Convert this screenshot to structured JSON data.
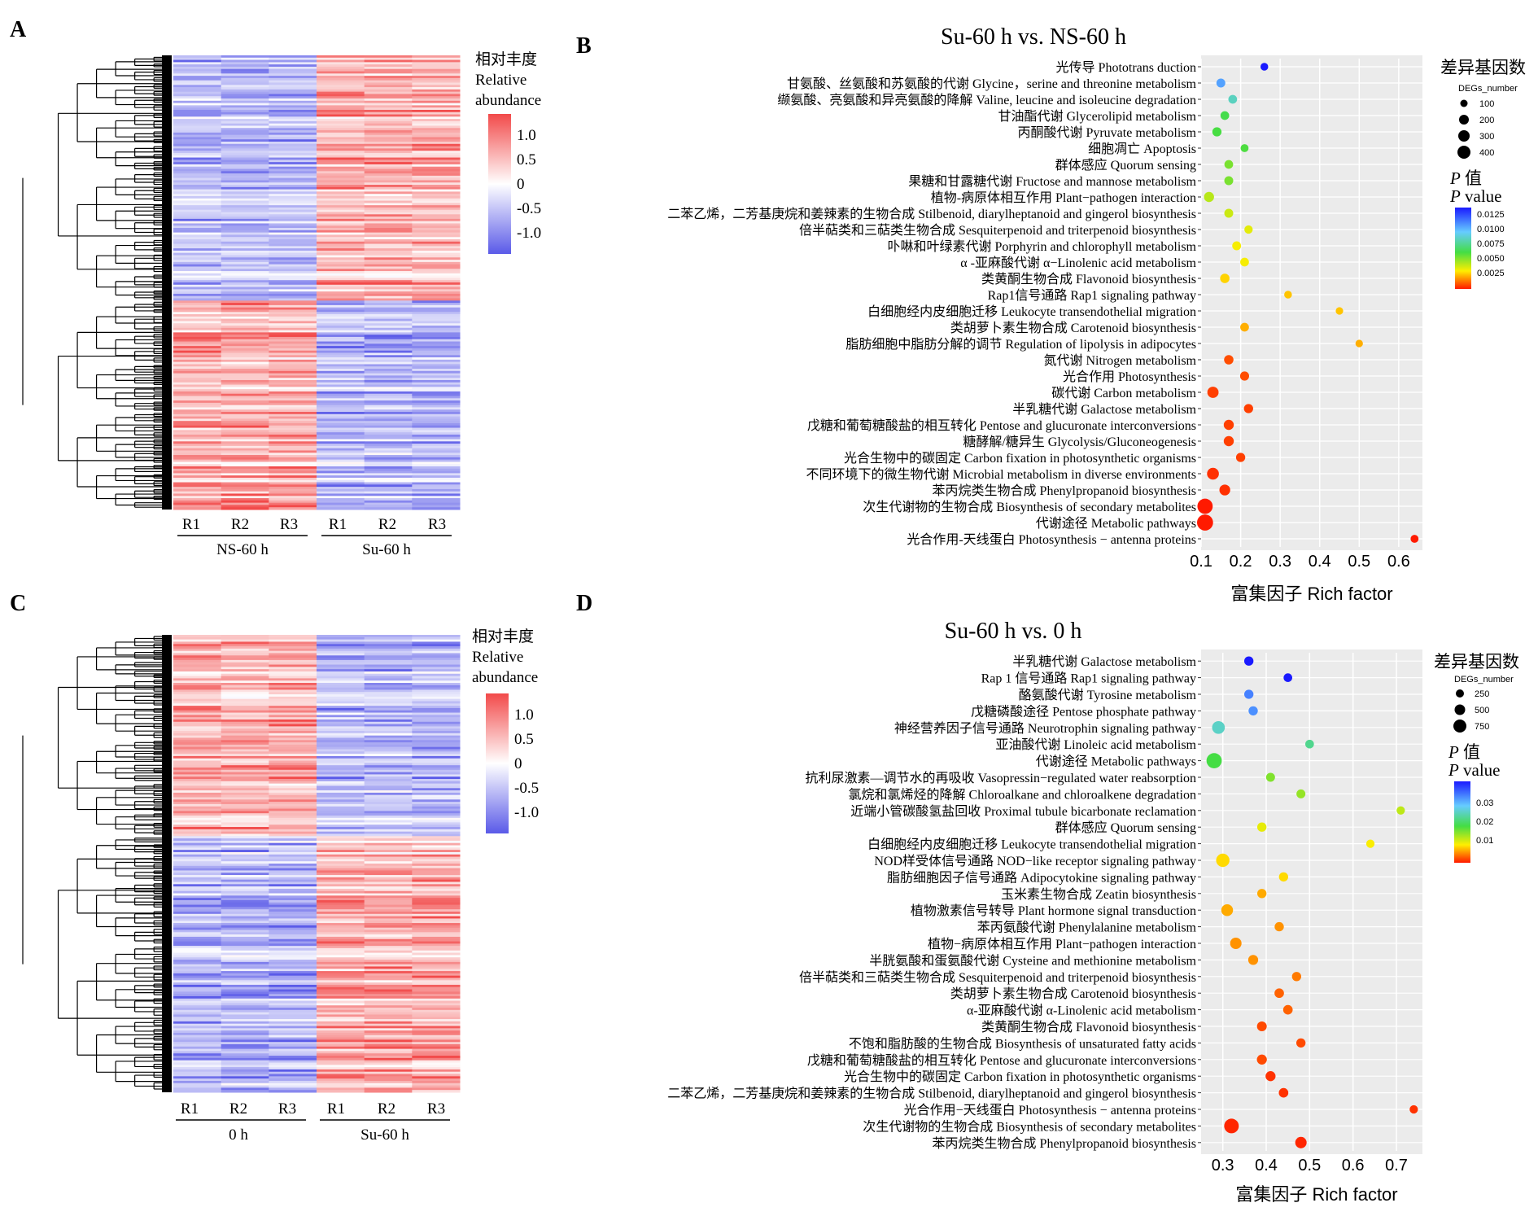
{
  "figure": {
    "panels": {
      "A": {
        "letter": "A",
        "legend": {
          "title_cn": "相对丰度",
          "title_en_1": "Relative",
          "title_en_2": "abundance",
          "ticks": [
            "1.0",
            "0.5",
            "0",
            "-0.5",
            "-1.0"
          ]
        },
        "columns": [
          "R1",
          "R2",
          "R3",
          "R1",
          "R2",
          "R3"
        ],
        "groups": [
          "NS-60 h",
          "Su-60 h"
        ]
      },
      "C": {
        "letter": "C",
        "legend": {
          "title_cn": "相对丰度",
          "title_en_1": "Relative",
          "title_en_2": "abundance",
          "ticks": [
            "1.0",
            "0.5",
            "0",
            "-0.5",
            "-1.0"
          ]
        },
        "columns": [
          "R1",
          "R2",
          "R3",
          "R1",
          "R2",
          "R3"
        ],
        "groups": [
          "0 h",
          "Su-60 h"
        ]
      },
      "B": {
        "letter": "B",
        "title": "Su-60 h vs. NS-60 h",
        "xlabel": "富集因子 Rich factor",
        "size_legend": {
          "title": "差异基因数",
          "subtitle": "DEGs_number",
          "labels": [
            "100",
            "200",
            "300",
            "400"
          ]
        },
        "color_legend": {
          "title_cn": "值",
          "title_en": "value",
          "p": "P",
          "labels": [
            "0.0125",
            "0.0100",
            "0.0075",
            "0.0050",
            "0.0025"
          ]
        }
      },
      "D": {
        "letter": "D",
        "title": "Su-60 h vs. 0 h",
        "xlabel": "富集因子 Rich factor",
        "size_legend": {
          "title": "差异基因数",
          "subtitle": "DEGs_number",
          "labels": [
            "250",
            "500",
            "750"
          ]
        },
        "color_legend": {
          "title_cn": "值",
          "title_en": "value",
          "p": "P",
          "labels": [
            "0.03",
            "0.02",
            "0.01"
          ]
        }
      }
    },
    "colors": {
      "high": "#f24a4a",
      "mid": "#ffffff",
      "low": "#5a5ae8",
      "panel_bg": "#ebebeb",
      "grid": "#ffffff"
    }
  },
  "chart_data": [
    {
      "type": "heatmap",
      "panel": "A",
      "columns": [
        "R1",
        "R2",
        "R3",
        "R1",
        "R2",
        "R3"
      ],
      "groups": [
        {
          "name": "NS-60 h",
          "columns": [
            0,
            1,
            2
          ]
        },
        {
          "name": "Su-60 h",
          "columns": [
            3,
            4,
            5
          ]
        }
      ],
      "color_scale": {
        "min": -1.0,
        "max": 1.0,
        "ticks": [
          1.0,
          0.5,
          0,
          -0.5,
          -1.0
        ]
      },
      "pattern": "upper cluster (about 54% of genes) higher in Su-60 h; lower cluster higher in NS-60 h"
    },
    {
      "type": "heatmap",
      "panel": "C",
      "columns": [
        "R1",
        "R2",
        "R3",
        "R1",
        "R2",
        "R3"
      ],
      "groups": [
        {
          "name": "0 h",
          "columns": [
            0,
            1,
            2
          ]
        },
        {
          "name": "Su-60 h",
          "columns": [
            3,
            4,
            5
          ]
        }
      ],
      "color_scale": {
        "min": -1.0,
        "max": 1.0,
        "ticks": [
          1.0,
          0.5,
          0,
          -0.5,
          -1.0
        ]
      },
      "pattern": "upper cluster (about 44% of genes) higher in 0 h; lower cluster higher in Su-60 h"
    },
    {
      "type": "scatter",
      "panel": "B",
      "title": "Su-60 h vs. NS-60 h",
      "xlabel": "富集因子 Rich factor",
      "xlim": [
        0.1,
        0.66
      ],
      "xticks": [
        0.1,
        0.2,
        0.3,
        0.4,
        0.5,
        0.6
      ],
      "size_label": "DEGs_number",
      "color_label": "P value",
      "color_range": [
        0.0005,
        0.0135
      ],
      "size_scale": [
        100,
        200,
        300,
        400
      ],
      "points": [
        {
          "label": "光传导 Phototrans duction",
          "x": 0.26,
          "count": 30,
          "p": 0.0135
        },
        {
          "label": "甘氨酸、丝氨酸和苏氨酸的代谢 Glycine，serine and threonine metabolism",
          "x": 0.15,
          "count": 60,
          "p": 0.0105
        },
        {
          "label": "缬氨酸、亮氨酸和异亮氨酸的降解 Valine, leucine and isoleucine degradation",
          "x": 0.18,
          "count": 55,
          "p": 0.0085
        },
        {
          "label": "甘油酯代谢 Glycerolipid metabolism",
          "x": 0.16,
          "count": 55,
          "p": 0.0065
        },
        {
          "label": "丙酮酸代谢 Pyruvate metabolism",
          "x": 0.14,
          "count": 70,
          "p": 0.0063
        },
        {
          "label": "细胞凋亡 Apoptosis",
          "x": 0.21,
          "count": 35,
          "p": 0.0062
        },
        {
          "label": "群体感应 Quorum sensing",
          "x": 0.17,
          "count": 55,
          "p": 0.0055
        },
        {
          "label": "果糖和甘露糖代谢 Fructose and mannose metabolism",
          "x": 0.17,
          "count": 60,
          "p": 0.0055
        },
        {
          "label": "植物-病原体相互作用 Plant−pathogen interaction",
          "x": 0.12,
          "count": 100,
          "p": 0.0045
        },
        {
          "label": "二苯乙烯，二芳基庚烷和姜辣素的生物合成 Stilbenoid, diarylheptanoid and gingerol biosynthesis",
          "x": 0.17,
          "count": 60,
          "p": 0.0042
        },
        {
          "label": "倍半萜类和三萜类生物合成 Sesquiterpenoid and triterpenoid biosynthesis",
          "x": 0.22,
          "count": 45,
          "p": 0.0038
        },
        {
          "label": "卟啉和叶绿素代谢 Porphyrin and chlorophyll metabolism",
          "x": 0.19,
          "count": 60,
          "p": 0.0035
        },
        {
          "label": "α -亚麻酸代谢  α−Linolenic acid metabolism",
          "x": 0.21,
          "count": 55,
          "p": 0.0035
        },
        {
          "label": "类黄酮生物合成 Flavonoid biosynthesis",
          "x": 0.16,
          "count": 75,
          "p": 0.003
        },
        {
          "label": "Rap1信号通路 Rap1 signaling pathway",
          "x": 0.32,
          "count": 30,
          "p": 0.0028
        },
        {
          "label": "白细胞经内皮细胞迁移 Leukocyte transendothelial migration",
          "x": 0.45,
          "count": 25,
          "p": 0.0028
        },
        {
          "label": "类胡萝卜素生物合成 Carotenoid biosynthesis",
          "x": 0.21,
          "count": 55,
          "p": 0.0025
        },
        {
          "label": "脂肪细胞中脂肪分解的调节 Regulation of lipolysis in adipocytes",
          "x": 0.5,
          "count": 25,
          "p": 0.0025
        },
        {
          "label": "氮代谢 Nitrogen metabolism",
          "x": 0.17,
          "count": 75,
          "p": 0.0012
        },
        {
          "label": "光合作用 Photosynthesis",
          "x": 0.21,
          "count": 65,
          "p": 0.0012
        },
        {
          "label": "碳代谢 Carbon metabolism",
          "x": 0.13,
          "count": 150,
          "p": 0.001
        },
        {
          "label": "半乳糖代谢 Galactose metabolism",
          "x": 0.22,
          "count": 70,
          "p": 0.001
        },
        {
          "label": "戊糖和葡萄糖酸盐的相互转化 Pentose and glucuronate interconversions",
          "x": 0.17,
          "count": 100,
          "p": 0.001
        },
        {
          "label": "糖酵解/糖异生 Glycolysis/Gluconeogenesis",
          "x": 0.17,
          "count": 100,
          "p": 0.001
        },
        {
          "label": "光合生物中的碳固定 Carbon fixation in photosynthetic organisms",
          "x": 0.2,
          "count": 70,
          "p": 0.001
        },
        {
          "label": "不同环境下的微生物代谢 Microbial metabolism in diverse environments",
          "x": 0.13,
          "count": 180,
          "p": 0.0008
        },
        {
          "label": "苯丙烷类生物合成  Phenylpropanoid biosynthesis",
          "x": 0.16,
          "count": 130,
          "p": 0.0008
        },
        {
          "label": "次生代谢物的生物合成 Biosynthesis of secondary metabolites",
          "x": 0.11,
          "count": 400,
          "p": 0.0005
        },
        {
          "label": "代谢途径 Metabolic pathways",
          "x": 0.11,
          "count": 460,
          "p": 0.0005
        },
        {
          "label": "光合作用-天线蛋白 Photosynthesis − antenna proteins",
          "x": 0.64,
          "count": 35,
          "p": 0.0005
        }
      ]
    },
    {
      "type": "scatter",
      "panel": "D",
      "title": "Su-60 h vs. 0 h",
      "xlabel": "富集因子 Rich factor",
      "xlim": [
        0.25,
        0.76
      ],
      "xticks": [
        0.3,
        0.4,
        0.5,
        0.6,
        0.7
      ],
      "size_label": "DEGs_number",
      "color_label": "P value",
      "color_range": [
        0.0,
        0.04
      ],
      "size_scale": [
        250,
        500,
        750
      ],
      "points": [
        {
          "label": "半乳糖代谢 Galactose metabolism",
          "x": 0.36,
          "count": 80,
          "p": 0.04
        },
        {
          "label": "Rap 1 信号通路 Rap1 signaling pathway",
          "x": 0.45,
          "count": 60,
          "p": 0.04
        },
        {
          "label": "酪氨酸代谢 Tyrosine metabolism",
          "x": 0.36,
          "count": 80,
          "p": 0.033
        },
        {
          "label": "戊糖磷酸途径 Pentose phosphate pathway",
          "x": 0.37,
          "count": 80,
          "p": 0.032
        },
        {
          "label": "神经营养因子信号通路 Neurotrophin signaling pathway",
          "x": 0.29,
          "count": 260,
          "p": 0.025
        },
        {
          "label": "亚油酸代谢 Linoleic acid metabolism",
          "x": 0.5,
          "count": 60,
          "p": 0.022
        },
        {
          "label": "代谢途径 Metabolic pathways",
          "x": 0.28,
          "count": 450,
          "p": 0.018
        },
        {
          "label": "抗利尿激素—调节水的再吸收 Vasopressin−regulated water reabsorption",
          "x": 0.41,
          "count": 70,
          "p": 0.015
        },
        {
          "label": "氯烷和氯烯烃的降解 Chloroalkane and chloroalkene degradation",
          "x": 0.48,
          "count": 70,
          "p": 0.014
        },
        {
          "label": "近端小管碳酸氢盐回收 Proximal tubule bicarbonate reclamation",
          "x": 0.71,
          "count": 50,
          "p": 0.012
        },
        {
          "label": "群体感应 Quorum sensing",
          "x": 0.39,
          "count": 80,
          "p": 0.01
        },
        {
          "label": "白细胞经内皮细胞迁移 Leukocyte transendothelial migration",
          "x": 0.64,
          "count": 50,
          "p": 0.009
        },
        {
          "label": "NOD样受体信号通路 NOD−like receptor signaling pathway",
          "x": 0.3,
          "count": 300,
          "p": 0.008
        },
        {
          "label": "脂肪细胞因子信号通路 Adipocytokine signaling pathway",
          "x": 0.44,
          "count": 80,
          "p": 0.008
        },
        {
          "label": "玉米素生物合成 Zeatin biosynthesis",
          "x": 0.39,
          "count": 80,
          "p": 0.006
        },
        {
          "label": "植物激素信号转导 Plant hormone signal transduction",
          "x": 0.31,
          "count": 200,
          "p": 0.006
        },
        {
          "label": "苯丙氨酸代谢 Phenylalanine metabolism",
          "x": 0.43,
          "count": 80,
          "p": 0.005
        },
        {
          "label": "植物−病原体相互作用 Plant−pathogen interaction",
          "x": 0.33,
          "count": 180,
          "p": 0.005
        },
        {
          "label": "半胱氨酸和蛋氨酸代谢 Cysteine and methionine metabolism",
          "x": 0.37,
          "count": 110,
          "p": 0.005
        },
        {
          "label": "倍半萜类和三萜类生物合成 Sesquiterpenoid and triterpenoid biosynthesis",
          "x": 0.47,
          "count": 80,
          "p": 0.004
        },
        {
          "label": "类胡萝卜素生物合成 Carotenoid biosynthesis",
          "x": 0.43,
          "count": 90,
          "p": 0.003
        },
        {
          "label": "α-亚麻酸代谢 α-Linolenic acid metabolism",
          "x": 0.45,
          "count": 90,
          "p": 0.003
        },
        {
          "label": "类黄酮生物合成 Flavonoid biosynthesis",
          "x": 0.39,
          "count": 100,
          "p": 0.002
        },
        {
          "label": "不饱和脂肪酸的生物合成 Biosynthesis of unsaturated fatty acids",
          "x": 0.48,
          "count": 80,
          "p": 0.002
        },
        {
          "label": "戊糖和葡萄糖酸盐的相互转化 Pentose and glucuronate interconversions",
          "x": 0.39,
          "count": 110,
          "p": 0.002
        },
        {
          "label": "光合生物中的碳固定 Carbon fixation in photosynthetic organisms",
          "x": 0.41,
          "count": 110,
          "p": 0.001
        },
        {
          "label": "二苯乙烯，二芳基庚烷和姜辣素的生物合成 Stilbenoid, diarylheptanoid and gingerol biosynthesis",
          "x": 0.44,
          "count": 90,
          "p": 0.001
        },
        {
          "label": "光合作用−天线蛋白 Photosynthesis − antenna proteins",
          "x": 0.74,
          "count": 50,
          "p": 0.001
        },
        {
          "label": "次生代谢物的生物合成 Biosynthesis of secondary metabolites",
          "x": 0.32,
          "count": 400,
          "p": 0.0005
        },
        {
          "label": "苯丙烷类生物合成 Phenylpropanoid biosynthesis",
          "x": 0.48,
          "count": 180,
          "p": 0.0005
        }
      ]
    }
  ]
}
